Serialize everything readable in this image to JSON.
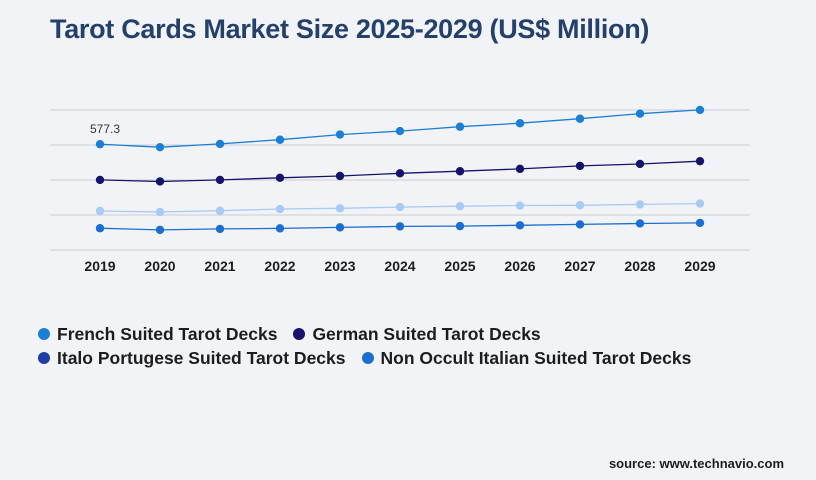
{
  "title": "Tarot Cards Market Size 2025-2029 (US$ Million)",
  "source": "source: www.technavio.com",
  "chart_data": {
    "type": "line",
    "title": "Tarot Cards Market Size 2025-2029 (US$ Million)",
    "x": [
      "2019",
      "2020",
      "2021",
      "2022",
      "2023",
      "2024",
      "2025",
      "2026",
      "2027",
      "2028",
      "2029"
    ],
    "ylim": [
      0,
      1000
    ],
    "grid": true,
    "legend_position": "bottom",
    "annotation": {
      "text": "577.3",
      "series": 0,
      "index": 0
    },
    "series": [
      {
        "name": "French Suited Tarot Decks",
        "color": "#1b7fd6",
        "values": [
          577.3,
          556,
          579,
          609,
          646,
          671,
          702,
          727,
          759,
          795,
          822
        ]
      },
      {
        "name": "German Suited Tarot Decks",
        "color": "#17136b",
        "values": [
          322,
          311,
          322,
          337,
          350,
          369,
          384,
          401,
          422,
          436,
          456
        ]
      },
      {
        "name": "Italo Portugese Suited Tarot Decks",
        "color": "#a8caf5",
        "values": [
          100,
          93,
          102,
          114,
          119,
          128,
          134,
          139,
          141,
          147,
          153
        ]
      },
      {
        "name": "Non Occult Italian Suited Tarot Decks",
        "color": "#1a6fd0",
        "values": [
          -23,
          -35,
          -28,
          -24,
          -17,
          -10,
          -8,
          -2,
          4,
          11,
          15
        ]
      }
    ]
  },
  "legend": [
    {
      "label": "French Suited Tarot Decks",
      "color": "#1b7fd6"
    },
    {
      "label": "German Suited Tarot Decks",
      "color": "#17136b"
    },
    {
      "label": "Italo Portugese Suited Tarot Decks",
      "color": "#1f3ea3"
    },
    {
      "label": "Non Occult Italian Suited Tarot Decks",
      "color": "#1a6fd0"
    }
  ]
}
